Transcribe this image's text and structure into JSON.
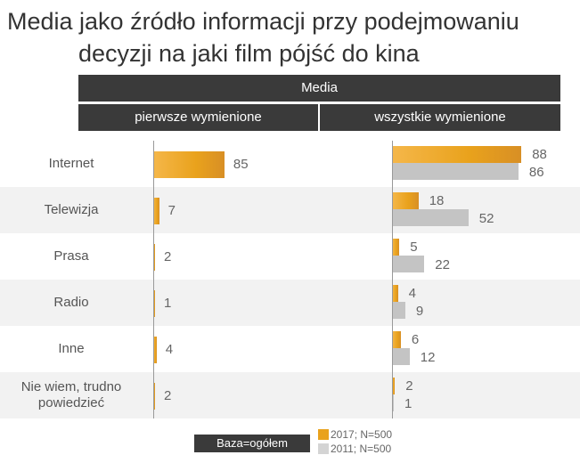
{
  "title_line1": "Media jako źródło informacji przy podejmowaniu",
  "title_line2": "decyzji na jaki film pójść do kina",
  "header": {
    "top": "Media",
    "left": "pierwsze wymienione",
    "right": "wszystkie wymienione"
  },
  "base_label": "Baza=ogółem",
  "colors": {
    "2017": "#e9a21c",
    "2011": "#c4c4c4",
    "band": "#f2f2f2",
    "header": "#3a3a3a"
  },
  "chart_data": [
    {
      "type": "bar",
      "orientation": "horizontal",
      "title": "pierwsze wymienione",
      "categories": [
        "Internet",
        "Telewizja",
        "Prasa",
        "Radio",
        "Inne",
        "Nie wiem, trudno powiedzieć"
      ],
      "series": [
        {
          "name": "2017; N=500",
          "values": [
            85,
            7,
            2,
            1,
            4,
            2
          ]
        }
      ]
    },
    {
      "type": "bar",
      "orientation": "horizontal",
      "title": "wszystkie wymienione",
      "categories": [
        "Internet",
        "Telewizja",
        "Prasa",
        "Radio",
        "Inne",
        "Nie wiem, trudno powiedzieć"
      ],
      "series": [
        {
          "name": "2017; N=500",
          "values": [
            88,
            18,
            5,
            4,
            6,
            2
          ]
        },
        {
          "name": "2011; N=500",
          "values": [
            86,
            52,
            22,
            9,
            12,
            1
          ]
        }
      ]
    }
  ],
  "legend": [
    "2017; N=500",
    "2011; N=500"
  ]
}
